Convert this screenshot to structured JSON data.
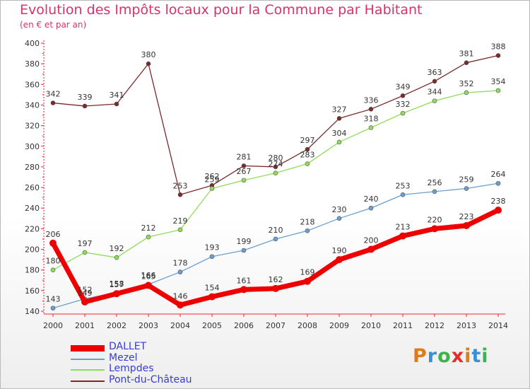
{
  "page": {
    "title": "Evolution des Impôts locaux pour la Commune par Habitant",
    "subtitle": "(en € et par an)"
  },
  "logo": {
    "text": "Proxiti",
    "letters": [
      "P",
      "r",
      "o",
      "x",
      "i",
      "t",
      "i"
    ],
    "colors": [
      "#e07b1a",
      "#3b8fd6",
      "#39b54a",
      "#e0302a",
      "#e07b1a",
      "#3b8fd6",
      "#39b54a"
    ]
  },
  "chart_data": {
    "type": "line",
    "x": [
      "2000",
      "2001",
      "2002",
      "2003",
      "2004",
      "2005",
      "2006",
      "2007",
      "2008",
      "2009",
      "2010",
      "2011",
      "2012",
      "2013",
      "2014"
    ],
    "ylim": [
      140,
      400
    ],
    "yticks": [
      140,
      160,
      180,
      200,
      220,
      240,
      260,
      280,
      300,
      320,
      340,
      360,
      380,
      400
    ],
    "grid": false,
    "legend_position": "bottom-left",
    "series": [
      {
        "name": "DALLET",
        "color": "#ee0000",
        "values": [
          206,
          149,
          157,
          165,
          146,
          154,
          161,
          162,
          169,
          190,
          200,
          213,
          220,
          223,
          238
        ]
      },
      {
        "name": "Mezel",
        "color": "#6a9fd0",
        "values": [
          143,
          152,
          158,
          166,
          178,
          193,
          199,
          210,
          218,
          230,
          240,
          253,
          256,
          259,
          264
        ]
      },
      {
        "name": "Lempdes",
        "color": "#8fdc5a",
        "values": [
          180,
          197,
          192,
          212,
          219,
          259,
          267,
          274,
          283,
          304,
          318,
          332,
          344,
          352,
          354
        ]
      },
      {
        "name": "Pont-du-Château",
        "color": "#7a2a2a",
        "values": [
          342,
          339,
          341,
          380,
          253,
          262,
          281,
          280,
          297,
          327,
          336,
          349,
          363,
          381,
          388
        ]
      }
    ]
  }
}
